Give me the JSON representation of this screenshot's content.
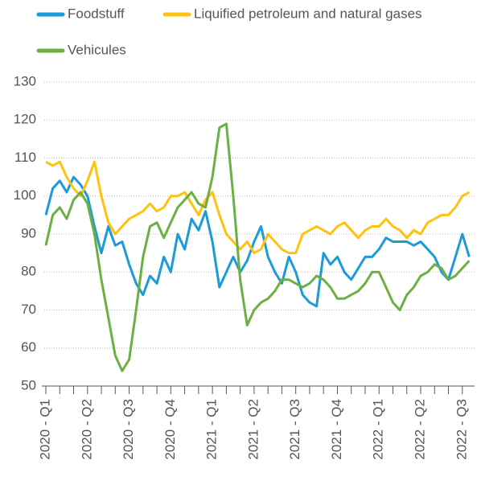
{
  "chart_data": {
    "type": "line",
    "categories": [
      "2020 - Q1",
      null,
      null,
      null,
      null,
      null,
      "2020 - Q2",
      null,
      null,
      null,
      null,
      null,
      "2020 - Q3",
      null,
      null,
      null,
      null,
      null,
      "2020 - Q4",
      null,
      null,
      null,
      null,
      null,
      "2021 - Q1",
      null,
      null,
      null,
      null,
      null,
      "2021 - Q2",
      null,
      null,
      null,
      null,
      null,
      "2021 - Q3",
      null,
      null,
      null,
      null,
      null,
      "2021 - Q4",
      null,
      null,
      null,
      null,
      null,
      "2022 - Q1",
      null,
      null,
      null,
      null,
      null,
      "2022 - Q2",
      null,
      null,
      null,
      null,
      null,
      "2022 - Q3",
      null
    ],
    "series": [
      {
        "name": "Foodstuff",
        "color": "#1b9bd7",
        "values": [
          95,
          102,
          104,
          101,
          105,
          103,
          100,
          92,
          85,
          92,
          87,
          88,
          82,
          77,
          74,
          79,
          77,
          84,
          80,
          90,
          86,
          94,
          91,
          96,
          88,
          76,
          80,
          84,
          80,
          83,
          88,
          92,
          84,
          80,
          77,
          84,
          80,
          74,
          72,
          71,
          85,
          82,
          84,
          80,
          78,
          81,
          84,
          84,
          86,
          89,
          88,
          88,
          88,
          87,
          88,
          86,
          84,
          80,
          78,
          84,
          90,
          84
        ]
      },
      {
        "name": "Liquified petroleum and natural gases",
        "color": "#ffc20e",
        "values": [
          109,
          108,
          109,
          105,
          102,
          100,
          104,
          109,
          100,
          93,
          90,
          92,
          94,
          95,
          96,
          98,
          96,
          97,
          100,
          100,
          101,
          98,
          95,
          99,
          101,
          95,
          90,
          88,
          86,
          88,
          85,
          86,
          90,
          88,
          86,
          85,
          85,
          90,
          91,
          92,
          91,
          90,
          92,
          93,
          91,
          89,
          91,
          92,
          92,
          94,
          92,
          91,
          89,
          91,
          90,
          93,
          94,
          95,
          95,
          97,
          100,
          101
        ]
      },
      {
        "name": "Vehicules",
        "color": "#6cb043",
        "values": [
          87,
          95,
          97,
          94,
          99,
          101,
          98,
          90,
          78,
          68,
          58,
          54,
          57,
          70,
          84,
          92,
          93,
          89,
          93,
          97,
          99,
          101,
          98,
          97,
          105,
          118,
          119,
          100,
          78,
          66,
          70,
          72,
          73,
          75,
          78,
          78,
          77,
          76,
          77,
          79,
          78,
          76,
          73,
          73,
          74,
          75,
          77,
          80,
          80,
          76,
          72,
          70,
          74,
          76,
          79,
          80,
          82,
          81,
          78,
          79,
          81,
          83
        ]
      }
    ],
    "ylim": [
      50,
      130
    ],
    "yticks": [
      50,
      60,
      70,
      80,
      90,
      100,
      110,
      120,
      130
    ],
    "grid": true
  }
}
